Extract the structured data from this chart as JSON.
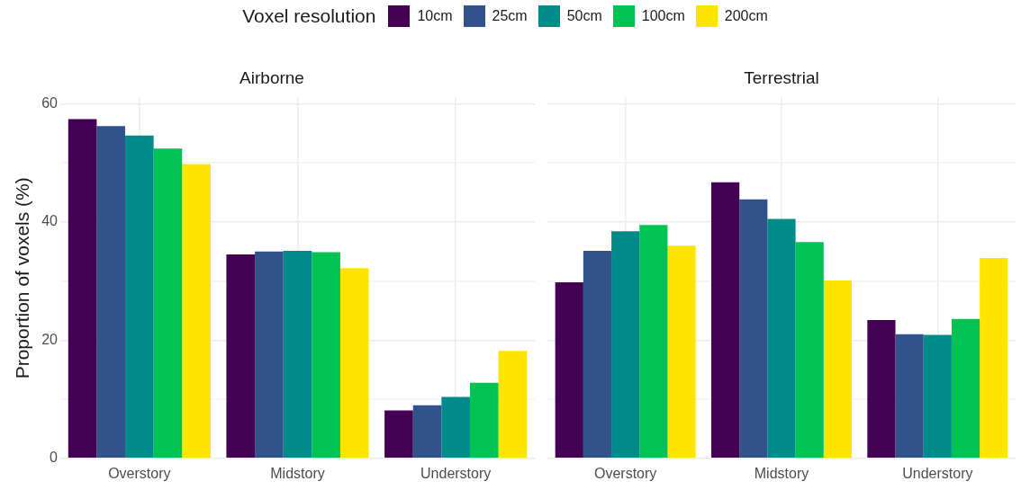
{
  "chart_data": [
    {
      "type": "bar",
      "title": "Airborne",
      "ylabel": "Proportion of voxels (%)",
      "legend_title": "Voxel resolution",
      "legend": "top",
      "grid": true,
      "categories": [
        "Overstory",
        "Midstory",
        "Understory"
      ],
      "ylim": [
        0,
        61
      ],
      "yticks": [
        0,
        {
          "value": 10,
          "label": null
        },
        20,
        {
          "value": 30,
          "label": null
        },
        40,
        {
          "value": 50,
          "label": null
        },
        60
      ],
      "series": [
        {
          "name": "10cm",
          "color": "#440154",
          "values": [
            57.4,
            34.5,
            8.1
          ]
        },
        {
          "name": "25cm",
          "color": "#31528b",
          "values": [
            56.2,
            35.0,
            9.0
          ]
        },
        {
          "name": "50cm",
          "color": "#008b8b",
          "values": [
            54.6,
            35.1,
            10.4
          ]
        },
        {
          "name": "100cm",
          "color": "#00c354",
          "values": [
            52.4,
            34.9,
            12.8
          ]
        },
        {
          "name": "200cm",
          "color": "#fde500",
          "values": [
            49.8,
            32.2,
            18.2
          ]
        }
      ]
    },
    {
      "type": "bar",
      "title": "Terrestrial",
      "grid": true,
      "tick_labels": "x",
      "categories": [
        "Overstory",
        "Midstory",
        "Understory"
      ],
      "ylim": [
        0,
        61
      ],
      "yticks": [
        0,
        {
          "value": 10,
          "label": null
        },
        20,
        {
          "value": 30,
          "label": null
        },
        40,
        {
          "value": 50,
          "label": null
        },
        60
      ],
      "series": [
        {
          "color": "#440154",
          "values": [
            29.8,
            46.7,
            23.4
          ]
        },
        {
          "color": "#31528b",
          "values": [
            35.1,
            43.8,
            21.0
          ]
        },
        {
          "color": "#008b8b",
          "values": [
            38.4,
            40.5,
            20.9
          ]
        },
        {
          "color": "#00c354",
          "values": [
            39.5,
            36.6,
            23.6
          ]
        },
        {
          "color": "#fde500",
          "values": [
            36.0,
            30.1,
            33.9
          ]
        }
      ]
    }
  ]
}
